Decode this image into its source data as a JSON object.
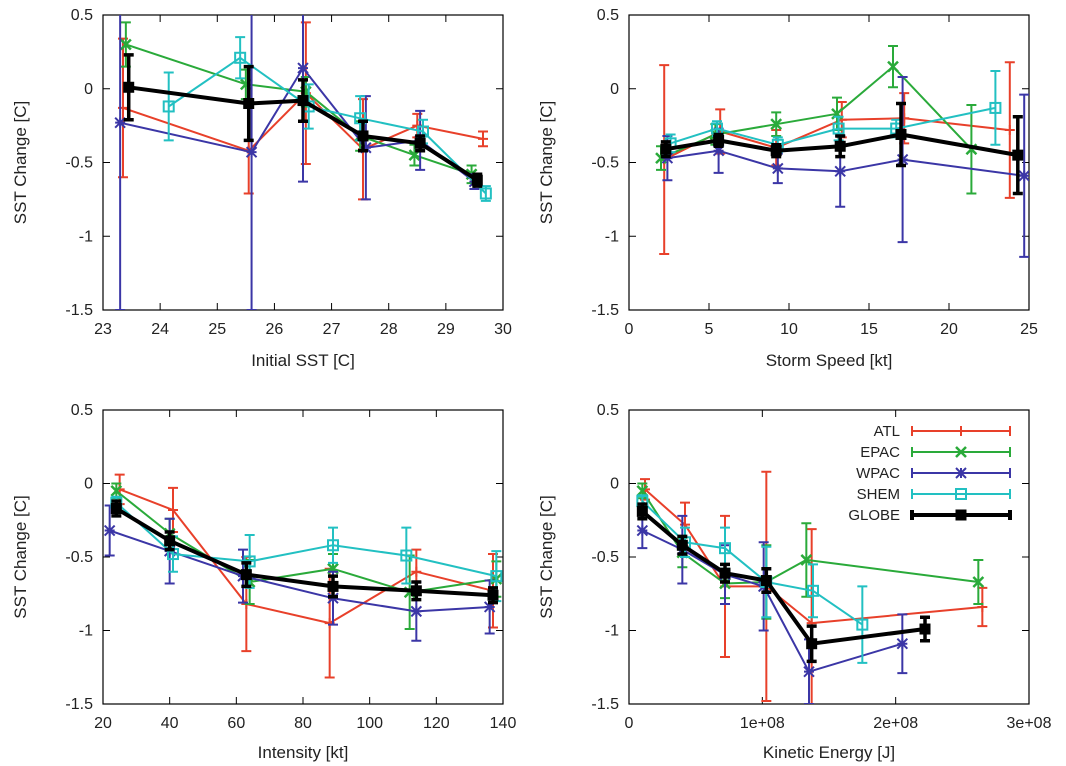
{
  "series_styles": [
    {
      "name": "ATL",
      "color": "#e8402a",
      "marker": "plus"
    },
    {
      "name": "EPAC",
      "color": "#2aaa3a",
      "marker": "cross"
    },
    {
      "name": "WPAC",
      "color": "#3b36a6",
      "marker": "star"
    },
    {
      "name": "SHEM",
      "color": "#22c0c2",
      "marker": "open-square"
    },
    {
      "name": "GLOBE",
      "color": "#000000",
      "marker": "filled-square"
    }
  ],
  "chart_data": [
    {
      "type": "line",
      "xlabel": "Initial SST [C]",
      "ylabel": "SST Change [C]",
      "xlim": [
        23,
        30
      ],
      "ylim": [
        -1.5,
        0.5
      ],
      "xticks": [
        23,
        24,
        25,
        26,
        27,
        28,
        29,
        30
      ],
      "xtick_labels": [
        "23",
        "24",
        "25",
        "26",
        "27",
        "28",
        "29",
        "30"
      ],
      "yticks": [
        -1.5,
        -1,
        -0.5,
        0,
        0.5
      ],
      "ytick_labels": [
        "-1.5",
        "-1",
        "-0.5",
        "0",
        "0.5"
      ],
      "legend": false,
      "series": [
        {
          "name": "ATL",
          "points": [
            [
              23.35,
              -0.13,
              0.47
            ],
            [
              25.55,
              -0.42,
              0.29
            ],
            [
              26.55,
              -0.03,
              0.48
            ],
            [
              27.55,
              -0.41,
              0.34
            ],
            [
              28.5,
              -0.25,
              0.08
            ],
            [
              29.65,
              -0.34,
              0.05
            ]
          ]
        },
        {
          "name": "EPAC",
          "points": [
            [
              23.4,
              0.3,
              0.15
            ],
            [
              25.5,
              0.03,
              0.1
            ],
            [
              26.55,
              -0.02,
              0.1
            ],
            [
              27.5,
              -0.32,
              0.1
            ],
            [
              28.45,
              -0.45,
              0.07
            ],
            [
              29.45,
              -0.58,
              0.06
            ]
          ]
        },
        {
          "name": "WPAC",
          "points": [
            [
              23.3,
              -0.23,
              1.27
            ],
            [
              25.6,
              -0.43,
              1.07
            ],
            [
              26.5,
              0.14,
              0.77
            ],
            [
              27.6,
              -0.4,
              0.35
            ],
            [
              28.55,
              -0.35,
              0.2
            ],
            [
              29.5,
              -0.63,
              0.05
            ]
          ]
        },
        {
          "name": "SHEM",
          "points": [
            [
              24.15,
              -0.12,
              0.23
            ],
            [
              25.4,
              0.21,
              0.14
            ],
            [
              26.6,
              -0.12,
              0.15
            ],
            [
              27.5,
              -0.2,
              0.15
            ],
            [
              28.6,
              -0.29,
              0.08
            ],
            [
              29.7,
              -0.71,
              0.05
            ]
          ]
        },
        {
          "name": "GLOBE",
          "points": [
            [
              23.45,
              0.01,
              0.22
            ],
            [
              25.55,
              -0.1,
              0.25
            ],
            [
              26.5,
              -0.08,
              0.14
            ],
            [
              27.55,
              -0.32,
              0.1
            ],
            [
              28.55,
              -0.37,
              0.05
            ],
            [
              29.55,
              -0.62,
              0.04
            ]
          ]
        }
      ]
    },
    {
      "type": "line",
      "xlabel": "Storm Speed [kt]",
      "ylabel": "SST Change [C]",
      "xlim": [
        0,
        25
      ],
      "ylim": [
        -1.5,
        0.5
      ],
      "xticks": [
        0,
        5,
        10,
        15,
        20,
        25
      ],
      "xtick_labels": [
        "0",
        "5",
        "10",
        "15",
        "20",
        "25"
      ],
      "yticks": [
        -1.5,
        -1,
        -0.5,
        0,
        0.5
      ],
      "ytick_labels": [
        "-1.5",
        "-1",
        "-0.5",
        "0",
        "0.5"
      ],
      "legend": false,
      "series": [
        {
          "name": "ATL",
          "points": [
            [
              2.2,
              -0.48,
              0.64
            ],
            [
              5.7,
              -0.29,
              0.15
            ],
            [
              9.2,
              -0.4,
              0.12
            ],
            [
              13.3,
              -0.21,
              0.12
            ],
            [
              17.2,
              -0.2,
              0.17
            ],
            [
              23.8,
              -0.28,
              0.46
            ]
          ]
        },
        {
          "name": "EPAC",
          "points": [
            [
              2.0,
              -0.47,
              0.08
            ],
            [
              5.4,
              -0.31,
              0.07
            ],
            [
              9.2,
              -0.24,
              0.08
            ],
            [
              13.0,
              -0.17,
              0.11
            ],
            [
              16.5,
              0.15,
              0.14
            ],
            [
              21.4,
              -0.41,
              0.3
            ]
          ]
        },
        {
          "name": "WPAC",
          "points": [
            [
              2.4,
              -0.47,
              0.15
            ],
            [
              5.6,
              -0.42,
              0.15
            ],
            [
              9.3,
              -0.54,
              0.1
            ],
            [
              13.2,
              -0.56,
              0.24
            ],
            [
              17.1,
              -0.48,
              0.56
            ],
            [
              24.7,
              -0.59,
              0.55
            ]
          ]
        },
        {
          "name": "SHEM",
          "points": [
            [
              2.6,
              -0.37,
              0.06
            ],
            [
              5.5,
              -0.27,
              0.05
            ],
            [
              9.3,
              -0.38,
              0.05
            ],
            [
              13.1,
              -0.27,
              0.08
            ],
            [
              16.7,
              -0.27,
              0.06
            ],
            [
              22.9,
              -0.13,
              0.25
            ]
          ]
        },
        {
          "name": "GLOBE",
          "points": [
            [
              2.3,
              -0.41,
              0.05
            ],
            [
              5.6,
              -0.35,
              0.04
            ],
            [
              9.2,
              -0.42,
              0.04
            ],
            [
              13.2,
              -0.39,
              0.07
            ],
            [
              17.0,
              -0.31,
              0.21
            ],
            [
              24.3,
              -0.45,
              0.26
            ]
          ]
        }
      ]
    },
    {
      "type": "line",
      "xlabel": "Intensity [kt]",
      "ylabel": "SST Change [C]",
      "xlim": [
        20,
        140
      ],
      "ylim": [
        -1.5,
        0.5
      ],
      "xticks": [
        20,
        40,
        60,
        80,
        100,
        120,
        140
      ],
      "xtick_labels": [
        "20",
        "40",
        "60",
        "80",
        "100",
        "120",
        "140"
      ],
      "yticks": [
        -1.5,
        -1,
        -0.5,
        0,
        0.5
      ],
      "ytick_labels": [
        "-1.5",
        "-1",
        "-0.5",
        "0",
        "0.5"
      ],
      "legend": false,
      "series": [
        {
          "name": "ATL",
          "points": [
            [
              25,
              -0.04,
              0.1
            ],
            [
              41,
              -0.18,
              0.15
            ],
            [
              63,
              -0.82,
              0.32
            ],
            [
              88,
              -0.95,
              0.37
            ],
            [
              114,
              -0.6,
              0.15
            ],
            [
              137,
              -0.73,
              0.25
            ]
          ]
        },
        {
          "name": "EPAC",
          "points": [
            [
              24,
              -0.05,
              0.05
            ],
            [
              40,
              -0.34,
              0.1
            ],
            [
              64,
              -0.67,
              0.15
            ],
            [
              89,
              -0.58,
              0.1
            ],
            [
              112,
              -0.74,
              0.25
            ],
            [
              138,
              -0.65,
              0.12
            ]
          ]
        },
        {
          "name": "WPAC",
          "points": [
            [
              22,
              -0.32,
              0.17
            ],
            [
              40,
              -0.46,
              0.22
            ],
            [
              62,
              -0.63,
              0.18
            ],
            [
              89,
              -0.78,
              0.18
            ],
            [
              114,
              -0.87,
              0.2
            ],
            [
              136,
              -0.84,
              0.18
            ]
          ]
        },
        {
          "name": "SHEM",
          "points": [
            [
              24,
              -0.13,
              0.04
            ],
            [
              41,
              -0.48,
              0.12
            ],
            [
              64,
              -0.53,
              0.18
            ],
            [
              89,
              -0.42,
              0.12
            ],
            [
              111,
              -0.49,
              0.19
            ],
            [
              138,
              -0.63,
              0.17
            ]
          ]
        },
        {
          "name": "GLOBE",
          "points": [
            [
              24,
              -0.17,
              0.05
            ],
            [
              40,
              -0.39,
              0.06
            ],
            [
              63,
              -0.62,
              0.08
            ],
            [
              89,
              -0.7,
              0.07
            ],
            [
              114,
              -0.73,
              0.06
            ],
            [
              137,
              -0.76,
              0.05
            ]
          ]
        }
      ]
    },
    {
      "type": "line",
      "xlabel": "Kinetic Energy [J]",
      "ylabel": "SST Change [C]",
      "xlim": [
        0,
        300000000
      ],
      "ylim": [
        -1.5,
        0.5
      ],
      "xticks": [
        0,
        100000000,
        200000000,
        300000000
      ],
      "xtick_labels": [
        "0",
        "1e+08",
        "2e+08",
        "3e+08"
      ],
      "yticks": [
        -1.5,
        -1,
        -0.5,
        0,
        0.5
      ],
      "ytick_labels": [
        "-1.5",
        "-1",
        "-0.5",
        "0",
        "0.5"
      ],
      "legend": true,
      "legend_position": "top-right",
      "series": [
        {
          "name": "ATL",
          "points": [
            [
              12000000,
              -0.04,
              0.07
            ],
            [
              42000000,
              -0.28,
              0.15
            ],
            [
              72000000,
              -0.7,
              0.48
            ],
            [
              103000000,
              -0.7,
              0.78
            ],
            [
              137000000,
              -0.95,
              0.64
            ],
            [
              265000000,
              -0.84,
              0.13
            ]
          ]
        },
        {
          "name": "EPAC",
          "points": [
            [
              10000000,
              -0.05,
              0.05
            ],
            [
              40000000,
              -0.47,
              0.1
            ],
            [
              72000000,
              -0.68,
              0.1
            ],
            [
              103000000,
              -0.67,
              0.25
            ],
            [
              133000000,
              -0.52,
              0.25
            ],
            [
              262000000,
              -0.67,
              0.15
            ]
          ]
        },
        {
          "name": "WPAC",
          "points": [
            [
              10000000,
              -0.32,
              0.12
            ],
            [
              40000000,
              -0.45,
              0.23
            ],
            [
              72000000,
              -0.62,
              0.2
            ],
            [
              101000000,
              -0.7,
              0.3
            ],
            [
              135000000,
              -1.28,
              0.22
            ],
            [
              205000000,
              -1.09,
              0.2
            ]
          ]
        },
        {
          "name": "SHEM",
          "points": [
            [
              10000000,
              -0.12,
              0.04
            ],
            [
              42000000,
              -0.4,
              0.1
            ],
            [
              72000000,
              -0.44,
              0.14
            ],
            [
              103000000,
              -0.67,
              0.24
            ],
            [
              138000000,
              -0.73,
              0.18
            ],
            [
              175000000,
              -0.96,
              0.26
            ]
          ]
        },
        {
          "name": "GLOBE",
          "points": [
            [
              10000000,
              -0.19,
              0.05
            ],
            [
              40000000,
              -0.42,
              0.06
            ],
            [
              72000000,
              -0.61,
              0.06
            ],
            [
              103000000,
              -0.66,
              0.08
            ],
            [
              137000000,
              -1.09,
              0.12
            ],
            [
              222000000,
              -0.99,
              0.08
            ]
          ]
        }
      ]
    }
  ]
}
